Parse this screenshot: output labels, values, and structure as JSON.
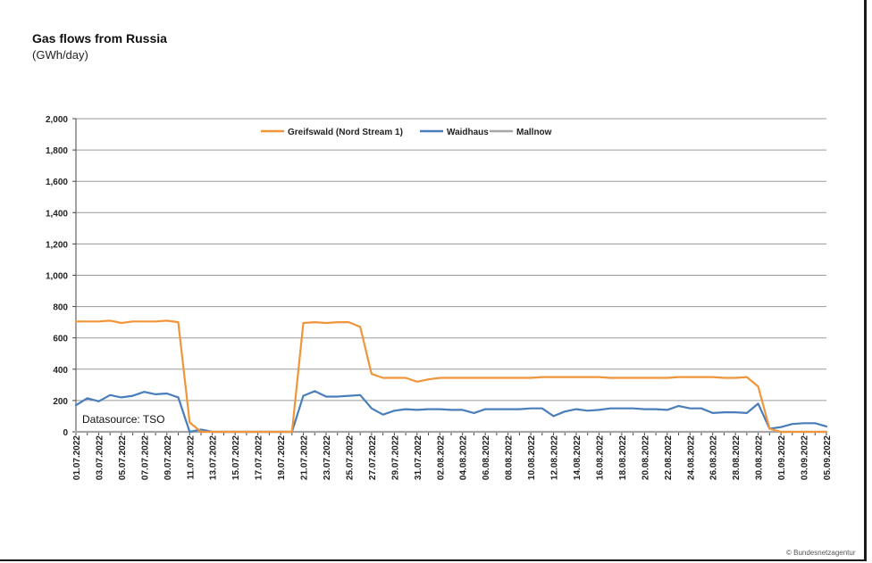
{
  "title": "Gas flows from Russia",
  "subtitle": "(GWh/day)",
  "credit": "© Bundesnetzagentur",
  "chart_data": {
    "type": "line",
    "title": "Gas flows from Russia",
    "ylabel": "(GWh/day)",
    "xlabel": "",
    "ylim": [
      0,
      2000
    ],
    "yticks": [
      0,
      200,
      400,
      600,
      800,
      1000,
      1200,
      1400,
      1600,
      1800,
      2000
    ],
    "ytick_labels": [
      "0",
      "200",
      "400",
      "600",
      "800",
      "1,000",
      "1,200",
      "1,400",
      "1,600",
      "1,800",
      "2,000"
    ],
    "grid": true,
    "legend_position": "top-center",
    "annotation": "Datasource: TSO",
    "x": [
      "01.07.2022",
      "02.07.2022",
      "03.07.2022",
      "04.07.2022",
      "05.07.2022",
      "06.07.2022",
      "07.07.2022",
      "08.07.2022",
      "09.07.2022",
      "10.07.2022",
      "11.07.2022",
      "12.07.2022",
      "13.07.2022",
      "14.07.2022",
      "15.07.2022",
      "16.07.2022",
      "17.07.2022",
      "18.07.2022",
      "19.07.2022",
      "20.07.2022",
      "21.07.2022",
      "22.07.2022",
      "23.07.2022",
      "24.07.2022",
      "25.07.2022",
      "26.07.2022",
      "27.07.2022",
      "28.07.2022",
      "29.07.2022",
      "30.07.2022",
      "31.07.2022",
      "01.08.2022",
      "02.08.2022",
      "03.08.2022",
      "04.08.2022",
      "05.08.2022",
      "06.08.2022",
      "07.08.2022",
      "08.08.2022",
      "09.08.2022",
      "10.08.2022",
      "11.08.2022",
      "12.08.2022",
      "13.08.2022",
      "14.08.2022",
      "15.08.2022",
      "16.08.2022",
      "17.08.2022",
      "18.08.2022",
      "19.08.2022",
      "20.08.2022",
      "21.08.2022",
      "22.08.2022",
      "23.08.2022",
      "24.08.2022",
      "25.08.2022",
      "26.08.2022",
      "27.08.2022",
      "28.08.2022",
      "29.08.2022",
      "30.08.2022",
      "31.08.2022",
      "01.09.2022",
      "02.09.2022",
      "03.09.2022",
      "04.09.2022",
      "05.09.2022"
    ],
    "x_tick_labels": [
      "01.07.2022",
      "03.07.2022",
      "05.07.2022",
      "07.07.2022",
      "09.07.2022",
      "11.07.2022",
      "13.07.2022",
      "15.07.2022",
      "17.07.2022",
      "19.07.2022",
      "21.07.2022",
      "23.07.2022",
      "25.07.2022",
      "27.07.2022",
      "29.07.2022",
      "31.07.2022",
      "02.08.2022",
      "04.08.2022",
      "06.08.2022",
      "08.08.2022",
      "10.08.2022",
      "12.08.2022",
      "14.08.2022",
      "16.08.2022",
      "18.08.2022",
      "20.08.2022",
      "22.08.2022",
      "24.08.2022",
      "26.08.2022",
      "28.08.2022",
      "30.08.2022",
      "01.09.2022",
      "03.09.2022",
      "05.09.2022"
    ],
    "series": [
      {
        "name": "Greifswald (Nord Stream 1)",
        "color": "#f0953a",
        "values": [
          705,
          705,
          705,
          710,
          695,
          705,
          705,
          705,
          710,
          700,
          60,
          0,
          0,
          0,
          0,
          0,
          0,
          0,
          0,
          0,
          695,
          700,
          695,
          700,
          700,
          670,
          370,
          345,
          345,
          345,
          320,
          335,
          345,
          345,
          345,
          345,
          345,
          345,
          345,
          345,
          345,
          350,
          350,
          350,
          350,
          350,
          350,
          345,
          345,
          345,
          345,
          345,
          345,
          350,
          350,
          350,
          350,
          345,
          345,
          350,
          290,
          20,
          0,
          0,
          0,
          0,
          0
        ]
      },
      {
        "name": "Waidhaus",
        "color": "#4a7ebb",
        "values": [
          170,
          215,
          195,
          235,
          220,
          230,
          255,
          240,
          245,
          220,
          0,
          15,
          0,
          0,
          0,
          0,
          0,
          0,
          0,
          0,
          230,
          260,
          225,
          225,
          230,
          235,
          150,
          110,
          135,
          145,
          140,
          145,
          145,
          140,
          140,
          120,
          145,
          145,
          145,
          145,
          150,
          150,
          100,
          130,
          145,
          135,
          140,
          150,
          150,
          150,
          145,
          145,
          140,
          165,
          150,
          150,
          120,
          125,
          125,
          120,
          180,
          20,
          30,
          50,
          55,
          55,
          35
        ]
      },
      {
        "name": "Mallnow",
        "color": "#a6a6a6",
        "values": [
          0,
          0,
          0,
          0,
          0,
          0,
          0,
          0,
          0,
          0,
          0,
          0,
          0,
          0,
          0,
          0,
          0,
          0,
          0,
          0,
          0,
          0,
          0,
          0,
          0,
          0,
          0,
          0,
          0,
          0,
          0,
          0,
          0,
          0,
          0,
          0,
          0,
          0,
          0,
          0,
          0,
          0,
          0,
          0,
          0,
          0,
          0,
          0,
          0,
          0,
          0,
          0,
          0,
          0,
          0,
          0,
          0,
          0,
          0,
          0,
          0,
          0,
          0,
          0,
          0,
          0,
          0
        ]
      }
    ]
  }
}
